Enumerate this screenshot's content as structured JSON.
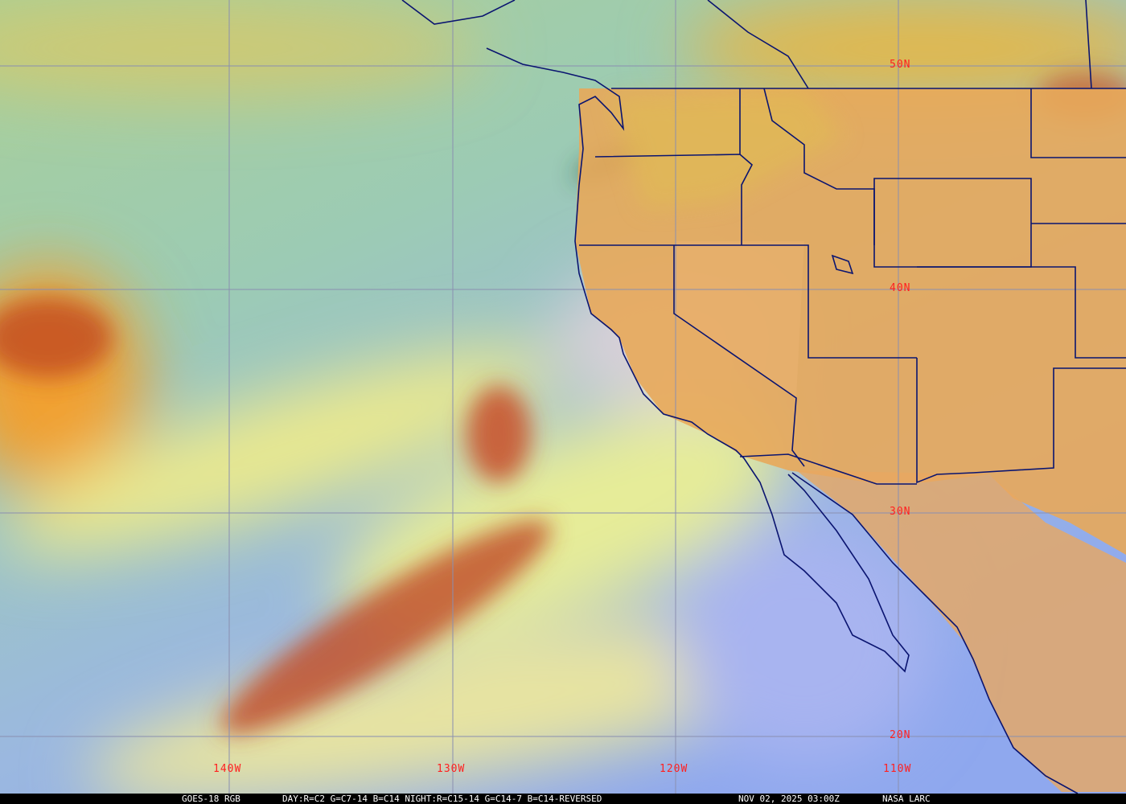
{
  "map": {
    "latitude_labels": [
      "50N",
      "40N",
      "30N",
      "20N"
    ],
    "longitude_labels": [
      "140W",
      "130W",
      "120W",
      "110W"
    ],
    "colors": {
      "label": "#ff2020",
      "gridline": "#8a8fb0",
      "borders": "#0a1470",
      "land": "#e8a85a",
      "ocean_blue": "#8fb0f0",
      "ocean_green": "#9fcaa8",
      "cloud_yellow": "#e6e890",
      "cloud_red": "#b83a20"
    }
  },
  "caption": {
    "satellite": "GOES-18 RGB",
    "recipe": "DAY:R=C2 G=C7-14 B=C14 NIGHT:R=C15-14 G=C14-7 B=C14-REVERSED",
    "datetime": "NOV 02, 2025 03:00Z",
    "credit": "NASA LARC"
  }
}
